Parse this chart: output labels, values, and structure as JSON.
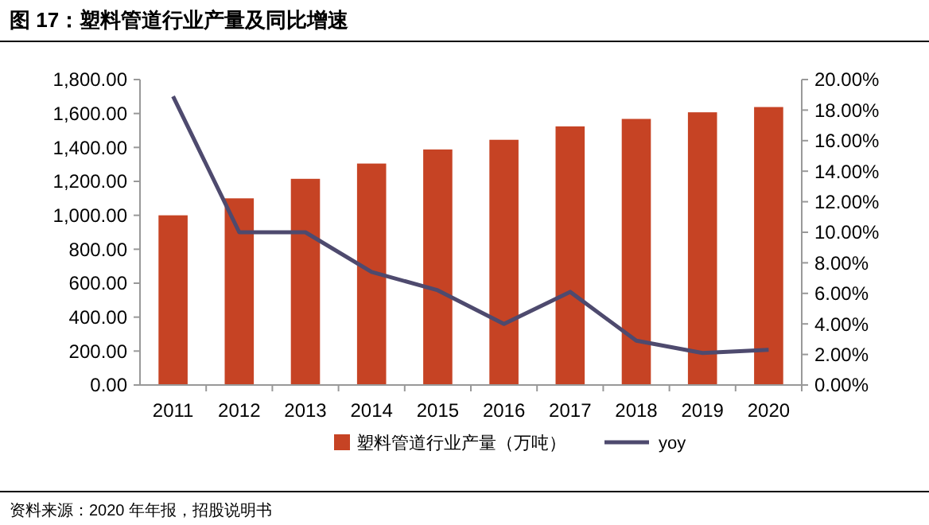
{
  "chart_data": {
    "type": "bar",
    "title": "图 17：塑料管道行业产量及同比增速",
    "categories": [
      "2011",
      "2012",
      "2013",
      "2014",
      "2015",
      "2016",
      "2017",
      "2018",
      "2019",
      "2020"
    ],
    "series": [
      {
        "name": "塑料管道行业产量（万吨）",
        "color": "#c64324",
        "values": [
          1000,
          1100,
          1215,
          1305,
          1388,
          1445,
          1524,
          1568,
          1607,
          1638
        ]
      },
      {
        "name": "yoy",
        "type": "line",
        "axis": "y2",
        "color": "#4e4a6e",
        "values": [
          18.9,
          10.0,
          10.0,
          7.4,
          6.2,
          4.0,
          6.1,
          2.9,
          2.1,
          2.3
        ]
      }
    ],
    "ylim": [
      0,
      1800
    ],
    "yticks": [
      {
        "value": 0,
        "label": "0.00"
      },
      {
        "value": 200,
        "label": "200.00"
      },
      {
        "value": 400,
        "label": "400.00"
      },
      {
        "value": 600,
        "label": "600.00"
      },
      {
        "value": 800,
        "label": "800.00"
      },
      {
        "value": 1000,
        "label": "1,000.00"
      },
      {
        "value": 1200,
        "label": "1,200.00"
      },
      {
        "value": 1400,
        "label": "1,400.00"
      },
      {
        "value": 1600,
        "label": "1,600.00"
      },
      {
        "value": 1800,
        "label": "1,800.00"
      }
    ],
    "y2lim": [
      0,
      20
    ],
    "y2ticks": [
      {
        "value": 0,
        "label": "0.00%"
      },
      {
        "value": 2,
        "label": "2.00%"
      },
      {
        "value": 4,
        "label": "4.00%"
      },
      {
        "value": 6,
        "label": "6.00%"
      },
      {
        "value": 8,
        "label": "8.00%"
      },
      {
        "value": 10,
        "label": "10.00%"
      },
      {
        "value": 12,
        "label": "12.00%"
      },
      {
        "value": 14,
        "label": "14.00%"
      },
      {
        "value": 16,
        "label": "16.00%"
      },
      {
        "value": 18,
        "label": "18.00%"
      },
      {
        "value": 20,
        "label": "20.00%"
      }
    ],
    "grid": false,
    "legend": "bottom",
    "annotations": [
      "资料来源：2020 年年报，招股说明书"
    ]
  }
}
